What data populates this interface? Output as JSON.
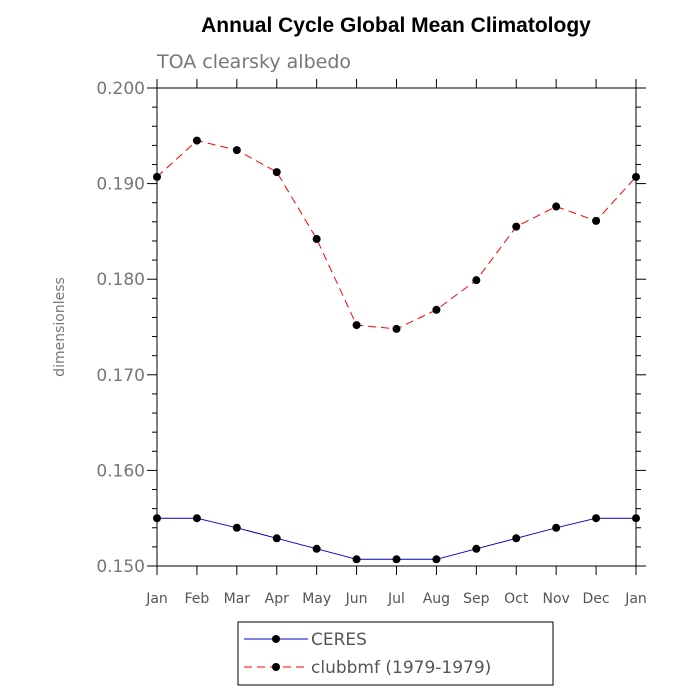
{
  "chart_data": {
    "type": "line",
    "title": "Annual Cycle Global Mean Climatology",
    "subtitle": "TOA clearsky albedo",
    "ylabel": "dimensionless",
    "xlabel": "",
    "categories": [
      "Jan",
      "Feb",
      "Mar",
      "Apr",
      "May",
      "Jun",
      "Jul",
      "Aug",
      "Sep",
      "Oct",
      "Nov",
      "Dec",
      "Jan"
    ],
    "ylim": [
      0.15,
      0.2
    ],
    "yticks": [
      "0.150",
      "0.160",
      "0.170",
      "0.180",
      "0.190",
      "0.200"
    ],
    "ytick_values": [
      0.15,
      0.16,
      0.17,
      0.18,
      0.19,
      0.2
    ],
    "series": [
      {
        "name": "CERES",
        "color": "#0000cc",
        "dash": "solid",
        "values": [
          0.155,
          0.155,
          0.154,
          0.1529,
          0.1518,
          0.1507,
          0.1507,
          0.1507,
          0.1518,
          0.1529,
          0.154,
          0.155,
          0.155
        ]
      },
      {
        "name": "clubbmf (1979-1979)",
        "color": "#ff0000",
        "dash": "dashed",
        "values": [
          0.1907,
          0.1945,
          0.1935,
          0.1912,
          0.1842,
          0.1752,
          0.1748,
          0.1768,
          0.1799,
          0.1855,
          0.1876,
          0.1861,
          0.1907
        ]
      }
    ],
    "legend_position": "bottom-center",
    "grid": false,
    "marker_color": "#000000"
  }
}
